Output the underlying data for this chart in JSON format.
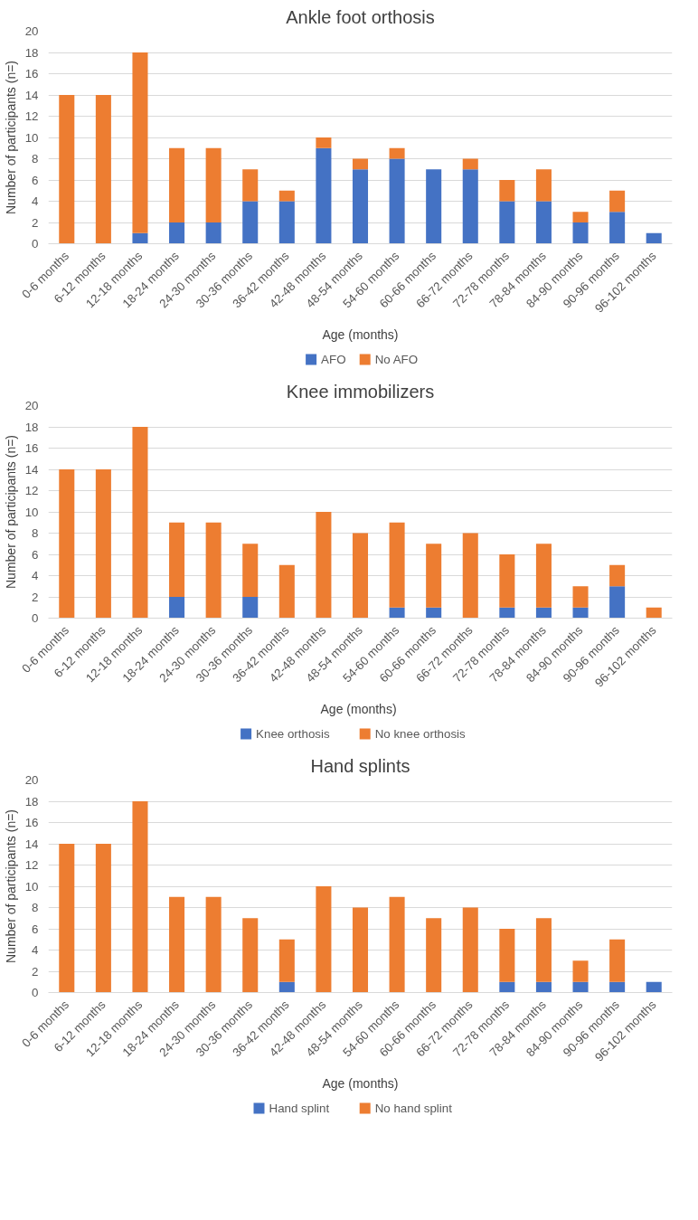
{
  "chart_data": [
    {
      "type": "bar",
      "title": "Ankle foot orthosis",
      "xlabel": "Age (months)",
      "ylabel": "Number of participants (n=)",
      "stacked": true,
      "grid": "y",
      "legend": "bottom",
      "ylim": [
        0,
        20
      ],
      "yticks": [
        0,
        2,
        4,
        6,
        8,
        10,
        12,
        14,
        16,
        18,
        20
      ],
      "categories": [
        "0-6 months",
        "6-12 months",
        "12-18 months",
        "18-24 months",
        "24-30 months",
        "30-36 months",
        "36-42 months",
        "42-48 months",
        "48-54 months",
        "54-60 months",
        "60-66 months",
        "66-72 months",
        "72-78 months",
        "78-84 months",
        "84-90 months",
        "90-96 months",
        "96-102 months"
      ],
      "series": [
        {
          "name": "AFO",
          "color": "#4472c4",
          "values": [
            0,
            0,
            1,
            2,
            2,
            4,
            4,
            9,
            7,
            8,
            7,
            7,
            4,
            4,
            2,
            3,
            1
          ]
        },
        {
          "name": "No AFO",
          "color": "#ed7d31",
          "values": [
            14,
            14,
            17,
            7,
            7,
            3,
            1,
            1,
            1,
            1,
            0,
            1,
            2,
            3,
            1,
            2,
            0
          ]
        }
      ]
    },
    {
      "type": "bar",
      "title": "Knee immobilizers",
      "xlabel": "Age  (months)",
      "ylabel": "Number of participants (n=)",
      "stacked": true,
      "grid": "y",
      "legend": "bottom",
      "ylim": [
        0,
        20
      ],
      "yticks": [
        0,
        2,
        4,
        6,
        8,
        10,
        12,
        14,
        16,
        18,
        20
      ],
      "categories": [
        "0-6 months",
        "6-12 months",
        "12-18 months",
        "18-24 months",
        "24-30 months",
        "30-36 months",
        "36-42 months",
        "42-48 months",
        "48-54 months",
        "54-60 months",
        "60-66 months",
        "66-72 months",
        "72-78 months",
        "78-84 months",
        "84-90 months",
        "90-96 months",
        "96-102 months"
      ],
      "series": [
        {
          "name": "Knee orthosis",
          "color": "#4472c4",
          "values": [
            0,
            0,
            0,
            2,
            0,
            2,
            0,
            0,
            0,
            1,
            1,
            0,
            1,
            1,
            1,
            3,
            0
          ]
        },
        {
          "name": "No knee orthosis",
          "color": "#ed7d31",
          "values": [
            14,
            14,
            18,
            7,
            9,
            5,
            5,
            10,
            8,
            8,
            6,
            8,
            5,
            6,
            2,
            2,
            1
          ]
        }
      ]
    },
    {
      "type": "bar",
      "title": "Hand splints",
      "xlabel": "Age (months)",
      "ylabel": "Number of participants (n=)",
      "stacked": true,
      "grid": "y",
      "legend": "bottom",
      "ylim": [
        0,
        20
      ],
      "yticks": [
        0,
        2,
        4,
        6,
        8,
        10,
        12,
        14,
        16,
        18,
        20
      ],
      "categories": [
        "0-6 months",
        "6-12 months",
        "12-18 months",
        "18-24 months",
        "24-30 months",
        "30-36 months",
        "36-42 months",
        "42-48 months",
        "48-54 months",
        "54-60 months",
        "60-66 months",
        "66-72 months",
        "72-78 months",
        "78-84 months",
        "84-90 months",
        "90-96 months",
        "96-102 months"
      ],
      "series": [
        {
          "name": "Hand splint",
          "color": "#4472c4",
          "values": [
            0,
            0,
            0,
            0,
            0,
            0,
            1,
            0,
            0,
            0,
            0,
            0,
            1,
            1,
            1,
            1,
            1
          ]
        },
        {
          "name": "No hand splint",
          "color": "#ed7d31",
          "values": [
            14,
            14,
            18,
            9,
            9,
            7,
            4,
            10,
            8,
            9,
            7,
            8,
            5,
            6,
            2,
            4,
            0
          ]
        }
      ]
    }
  ]
}
